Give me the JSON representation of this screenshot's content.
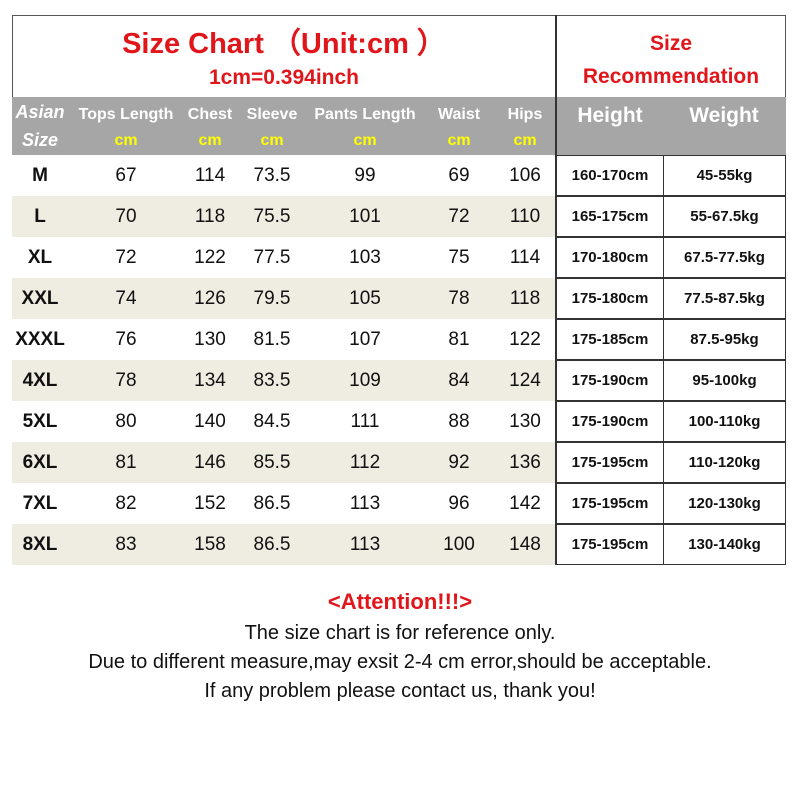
{
  "title": "Size Chart （Unit:cm ）",
  "conversion": "1cm=0.394inch",
  "recommendation_title": [
    "Size",
    "Recommendation"
  ],
  "headers": {
    "size": [
      "Asian",
      "Size"
    ],
    "columns": [
      "Tops Length",
      "Chest",
      "Sleeve",
      "Pants Length",
      "Waist",
      "Hips"
    ],
    "unit": "cm",
    "height": "Height",
    "weight": "Weight"
  },
  "rows": [
    {
      "size": "M",
      "values": [
        "67",
        "114",
        "73.5",
        "99",
        "69",
        "106"
      ],
      "height": "160-170cm",
      "weight": "45-55kg"
    },
    {
      "size": "L",
      "values": [
        "70",
        "118",
        "75.5",
        "101",
        "72",
        "110"
      ],
      "height": "165-175cm",
      "weight": "55-67.5kg"
    },
    {
      "size": "XL",
      "values": [
        "72",
        "122",
        "77.5",
        "103",
        "75",
        "114"
      ],
      "height": "170-180cm",
      "weight": "67.5-77.5kg"
    },
    {
      "size": "XXL",
      "values": [
        "74",
        "126",
        "79.5",
        "105",
        "78",
        "118"
      ],
      "height": "175-180cm",
      "weight": "77.5-87.5kg"
    },
    {
      "size": "XXXL",
      "values": [
        "76",
        "130",
        "81.5",
        "107",
        "81",
        "122"
      ],
      "height": "175-185cm",
      "weight": "87.5-95kg"
    },
    {
      "size": "4XL",
      "values": [
        "78",
        "134",
        "83.5",
        "109",
        "84",
        "124"
      ],
      "height": "175-190cm",
      "weight": "95-100kg"
    },
    {
      "size": "5XL",
      "values": [
        "80",
        "140",
        "84.5",
        "111",
        "88",
        "130"
      ],
      "height": "175-190cm",
      "weight": "100-110kg"
    },
    {
      "size": "6XL",
      "values": [
        "81",
        "146",
        "85.5",
        "112",
        "92",
        "136"
      ],
      "height": "175-195cm",
      "weight": "110-120kg"
    },
    {
      "size": "7XL",
      "values": [
        "82",
        "152",
        "86.5",
        "113",
        "96",
        "142"
      ],
      "height": "175-195cm",
      "weight": "120-130kg"
    },
    {
      "size": "8XL",
      "values": [
        "83",
        "158",
        "86.5",
        "113",
        "100",
        "148"
      ],
      "height": "175-195cm",
      "weight": "130-140kg"
    }
  ],
  "notes": {
    "attention": "<Attention!!!>",
    "lines": [
      "The size chart is for reference only.",
      "Due to different measure,may exsit 2-4 cm error,should be acceptable.",
      "If any problem please contact us, thank you!"
    ]
  },
  "colors": {
    "accent": "#e0161b",
    "header_bg": "#a6a6a6",
    "unit": "#ffff00",
    "alt_row": "#efede2"
  }
}
